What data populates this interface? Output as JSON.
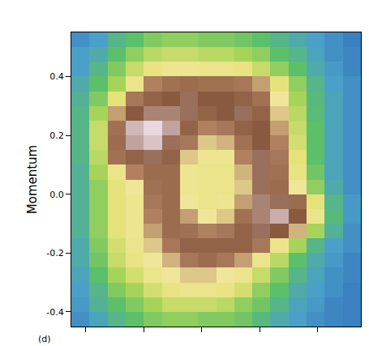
{
  "chart_data": {
    "type": "heatmap",
    "y_label": "Momentum",
    "annotations": [
      "(d)"
    ],
    "tick_labels": "y",
    "xlim": [
      0,
      1
    ],
    "xticks": [
      0.05,
      0.25,
      0.45,
      0.65,
      0.85
    ],
    "ylim": [
      -0.45,
      0.55
    ],
    "yticks": [
      {
        "value": -0.4,
        "label": "-0.4"
      },
      {
        "value": -0.2,
        "label": "-0.2"
      },
      {
        "value": 0,
        "label": "0.0"
      },
      {
        "value": 0.2,
        "label": "0.2"
      },
      {
        "value": 0.4,
        "label": "0.4"
      }
    ],
    "zlim": [
      0,
      1
    ],
    "x": [
      0.03125,
      0.09375,
      0.15625,
      0.21875,
      0.28125,
      0.34375,
      0.40625,
      0.46875,
      0.53125,
      0.59375,
      0.65625,
      0.71875,
      0.78125,
      0.84375,
      0.90625,
      0.96875
    ],
    "y": [
      -0.425,
      -0.375,
      -0.325,
      -0.275,
      -0.225,
      -0.175,
      -0.125,
      -0.075,
      -0.025,
      0.025,
      0.075,
      0.125,
      0.175,
      0.225,
      0.275,
      0.325,
      0.375,
      0.425,
      0.475,
      0.525
    ],
    "z": [
      [
        0.15,
        0.22,
        0.3,
        0.35,
        0.4,
        0.42,
        0.42,
        0.4,
        0.4,
        0.38,
        0.32,
        0.25,
        0.2,
        0.15,
        0.12,
        0.1
      ],
      [
        0.18,
        0.28,
        0.35,
        0.4,
        0.45,
        0.5,
        0.5,
        0.5,
        0.48,
        0.42,
        0.38,
        0.3,
        0.22,
        0.18,
        0.12,
        0.1
      ],
      [
        0.2,
        0.3,
        0.4,
        0.45,
        0.52,
        0.58,
        0.6,
        0.6,
        0.58,
        0.52,
        0.42,
        0.35,
        0.25,
        0.2,
        0.15,
        0.1
      ],
      [
        0.22,
        0.35,
        0.45,
        0.52,
        0.6,
        0.65,
        0.68,
        0.68,
        0.65,
        0.6,
        0.5,
        0.4,
        0.3,
        0.22,
        0.15,
        0.12
      ],
      [
        0.25,
        0.38,
        0.5,
        0.58,
        0.65,
        0.7,
        0.78,
        0.82,
        0.78,
        0.72,
        0.6,
        0.48,
        0.35,
        0.25,
        0.18,
        0.12
      ],
      [
        0.25,
        0.4,
        0.52,
        0.6,
        0.68,
        0.78,
        0.85,
        0.85,
        0.85,
        0.85,
        0.78,
        0.6,
        0.45,
        0.3,
        0.2,
        0.15
      ],
      [
        0.28,
        0.42,
        0.55,
        0.62,
        0.72,
        0.82,
        0.8,
        0.75,
        0.78,
        0.85,
        0.9,
        0.88,
        0.7,
        0.45,
        0.28,
        0.15
      ],
      [
        0.28,
        0.42,
        0.55,
        0.62,
        0.75,
        0.82,
        0.72,
        0.65,
        0.68,
        0.8,
        0.92,
        0.96,
        0.88,
        0.6,
        0.32,
        0.18
      ],
      [
        0.28,
        0.42,
        0.55,
        0.62,
        0.78,
        0.82,
        0.65,
        0.6,
        0.62,
        0.72,
        0.92,
        0.9,
        0.82,
        0.55,
        0.3,
        0.18
      ],
      [
        0.28,
        0.42,
        0.55,
        0.65,
        0.8,
        0.82,
        0.62,
        0.6,
        0.6,
        0.68,
        0.9,
        0.82,
        0.65,
        0.42,
        0.25,
        0.15
      ],
      [
        0.28,
        0.45,
        0.6,
        0.75,
        0.82,
        0.82,
        0.62,
        0.6,
        0.6,
        0.7,
        0.9,
        0.8,
        0.58,
        0.38,
        0.22,
        0.15
      ],
      [
        0.3,
        0.48,
        0.8,
        0.85,
        0.9,
        0.85,
        0.68,
        0.62,
        0.62,
        0.75,
        0.9,
        0.78,
        0.55,
        0.35,
        0.22,
        0.15
      ],
      [
        0.3,
        0.5,
        0.82,
        0.95,
        0.98,
        0.9,
        0.78,
        0.68,
        0.7,
        0.8,
        0.88,
        0.75,
        0.52,
        0.35,
        0.22,
        0.15
      ],
      [
        0.3,
        0.5,
        0.8,
        0.97,
        1.0,
        0.95,
        0.85,
        0.75,
        0.78,
        0.85,
        0.88,
        0.72,
        0.5,
        0.35,
        0.22,
        0.15
      ],
      [
        0.3,
        0.45,
        0.72,
        0.88,
        0.92,
        0.92,
        0.9,
        0.85,
        0.88,
        0.9,
        0.85,
        0.68,
        0.48,
        0.33,
        0.22,
        0.15
      ],
      [
        0.28,
        0.4,
        0.55,
        0.78,
        0.85,
        0.88,
        0.9,
        0.88,
        0.88,
        0.85,
        0.8,
        0.65,
        0.45,
        0.32,
        0.22,
        0.15
      ],
      [
        0.25,
        0.35,
        0.45,
        0.6,
        0.75,
        0.8,
        0.82,
        0.8,
        0.8,
        0.78,
        0.72,
        0.55,
        0.42,
        0.3,
        0.2,
        0.15
      ],
      [
        0.2,
        0.3,
        0.4,
        0.5,
        0.58,
        0.62,
        0.62,
        0.6,
        0.6,
        0.58,
        0.5,
        0.42,
        0.35,
        0.25,
        0.18,
        0.12
      ],
      [
        0.2,
        0.25,
        0.35,
        0.42,
        0.48,
        0.5,
        0.5,
        0.48,
        0.48,
        0.45,
        0.42,
        0.35,
        0.3,
        0.22,
        0.15,
        0.12
      ],
      [
        0.15,
        0.2,
        0.3,
        0.35,
        0.4,
        0.42,
        0.42,
        0.4,
        0.4,
        0.38,
        0.35,
        0.3,
        0.25,
        0.2,
        0.15,
        0.1
      ]
    ]
  }
}
